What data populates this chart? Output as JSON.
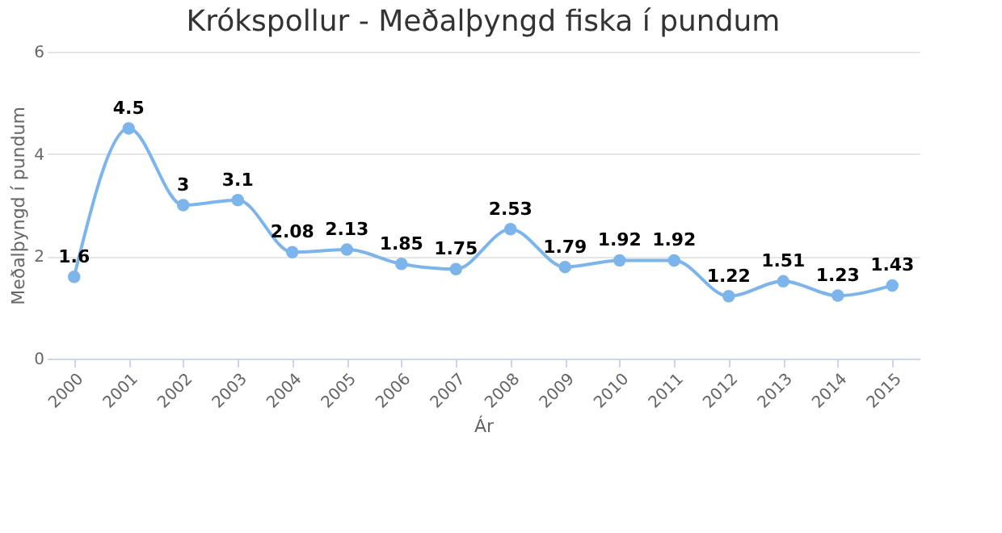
{
  "chart_data": {
    "type": "line",
    "title": "Krókspollur - Meðalþyngd fiska í pundum",
    "xlabel": "Ár",
    "ylabel": "Meðalþyngd í pundum",
    "categories": [
      "2000",
      "2001",
      "2002",
      "2003",
      "2004",
      "2005",
      "2006",
      "2007",
      "2008",
      "2009",
      "2010",
      "2011",
      "2012",
      "2013",
      "2014",
      "2015"
    ],
    "series": [
      {
        "color": "#7cb5ec",
        "values": [
          1.6,
          4.5,
          3,
          3.1,
          2.08,
          2.13,
          1.85,
          1.75,
          2.53,
          1.79,
          1.92,
          1.92,
          1.22,
          1.51,
          1.23,
          1.43
        ]
      }
    ],
    "ylim": [
      0,
      6
    ],
    "yticks": [
      0,
      2,
      4,
      6
    ],
    "grid": "y",
    "marker": "circle",
    "line_style": "solid",
    "data_labels": true,
    "legend": false
  }
}
